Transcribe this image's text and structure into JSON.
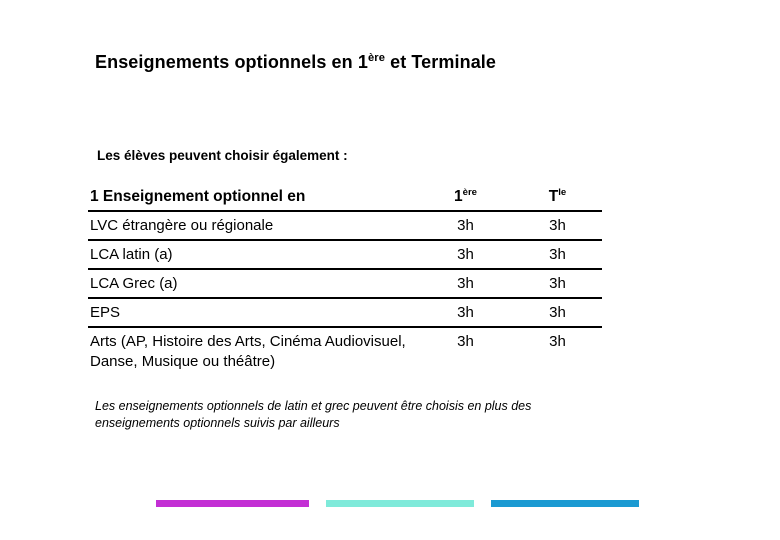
{
  "slide": {
    "title": {
      "pre": "Enseignements optionnels en 1",
      "sup": "ère",
      "post": " et Terminale"
    },
    "subtitle": "Les élèves peuvent choisir également :",
    "table": {
      "header": {
        "col1": "1 Enseignement optionnel en",
        "col2_base": "1",
        "col2_sup": "ère",
        "col3_base": "T",
        "col3_sup": "le"
      },
      "rows": [
        {
          "label": "LVC étrangère ou régionale",
          "premiere": "3h",
          "terminale": "3h"
        },
        {
          "label": "LCA latin (a)",
          "premiere": "3h",
          "terminale": "3h"
        },
        {
          "label": "LCA Grec (a)",
          "premiere": "3h",
          "terminale": "3h"
        },
        {
          "label": "EPS",
          "premiere": "3h",
          "terminale": "3h"
        },
        {
          "label": "Arts (AP, Histoire des Arts, Cinéma Audiovisuel, Danse, Musique ou théâtre)",
          "premiere": "3h",
          "terminale": "3h"
        }
      ]
    },
    "note": "Les enseignements optionnels de latin et grec peuvent être choisis en plus des enseignements optionnels suivis par ailleurs",
    "decoration": {
      "bars": [
        {
          "name": "magenta-bar",
          "color": "#c32fd4"
        },
        {
          "name": "teal-bar",
          "color": "#7feada"
        },
        {
          "name": "blue-bar",
          "color": "#1b9ad2"
        }
      ]
    }
  }
}
